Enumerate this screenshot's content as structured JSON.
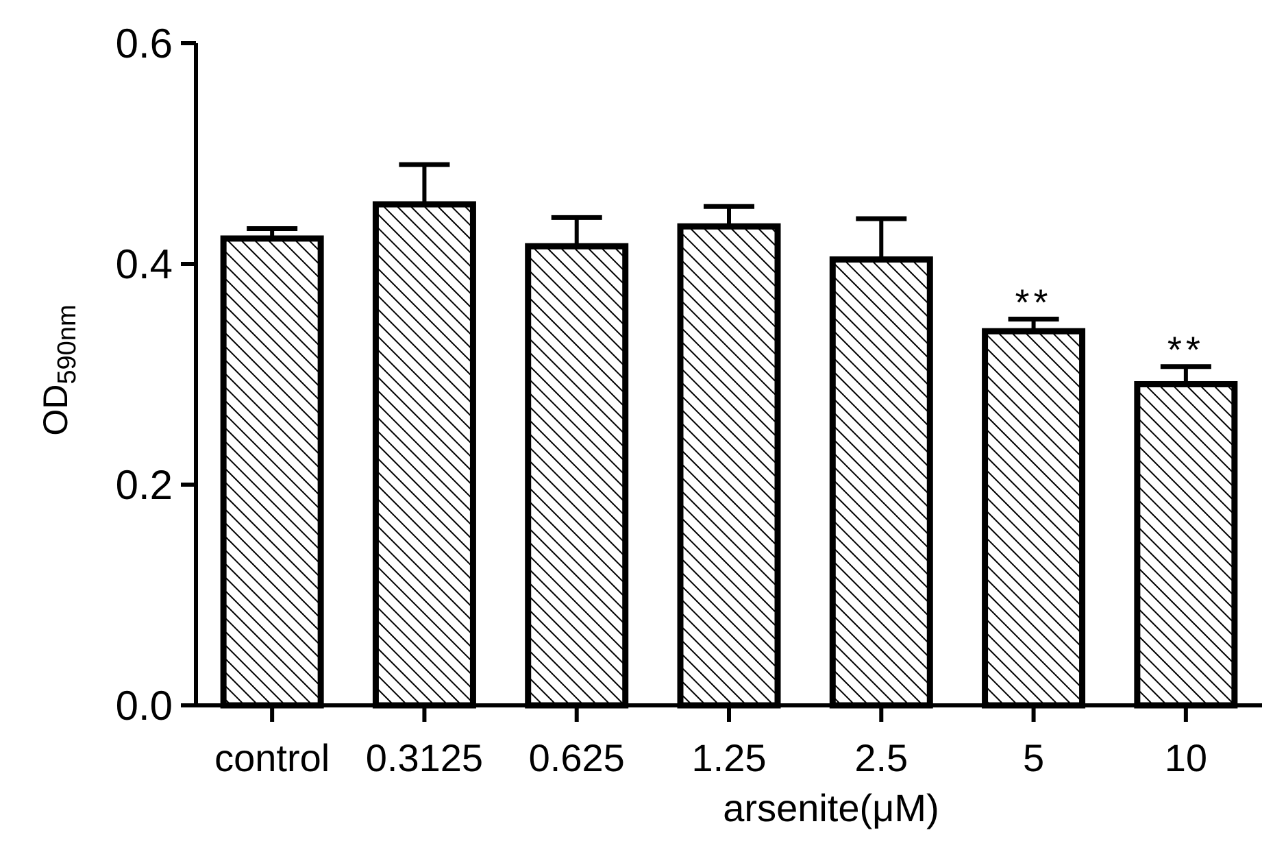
{
  "chart_data": {
    "type": "bar",
    "categories": [
      "control",
      "0.3125",
      "0.625",
      "1.25",
      "2.5",
      "5",
      "10"
    ],
    "values": [
      0.423,
      0.454,
      0.416,
      0.434,
      0.404,
      0.339,
      0.291
    ],
    "error_upper": [
      0.432,
      0.49,
      0.442,
      0.452,
      0.441,
      0.35,
      0.307
    ],
    "annotations": [
      "",
      "",
      "",
      "",
      "",
      "**",
      "**"
    ],
    "ylabel_main": "OD",
    "ylabel_sub": "590nm",
    "xlabel": "arsenite(μM)",
    "ylim": [
      0,
      0.6
    ],
    "yticks": [
      0.0,
      0.2,
      0.4,
      0.6
    ],
    "ytick_labels": [
      "0.0",
      "0.2",
      "0.4",
      "0.6"
    ],
    "bar_fill": "hatched",
    "bar_color": "#000000",
    "grid": false,
    "legend": "none"
  }
}
